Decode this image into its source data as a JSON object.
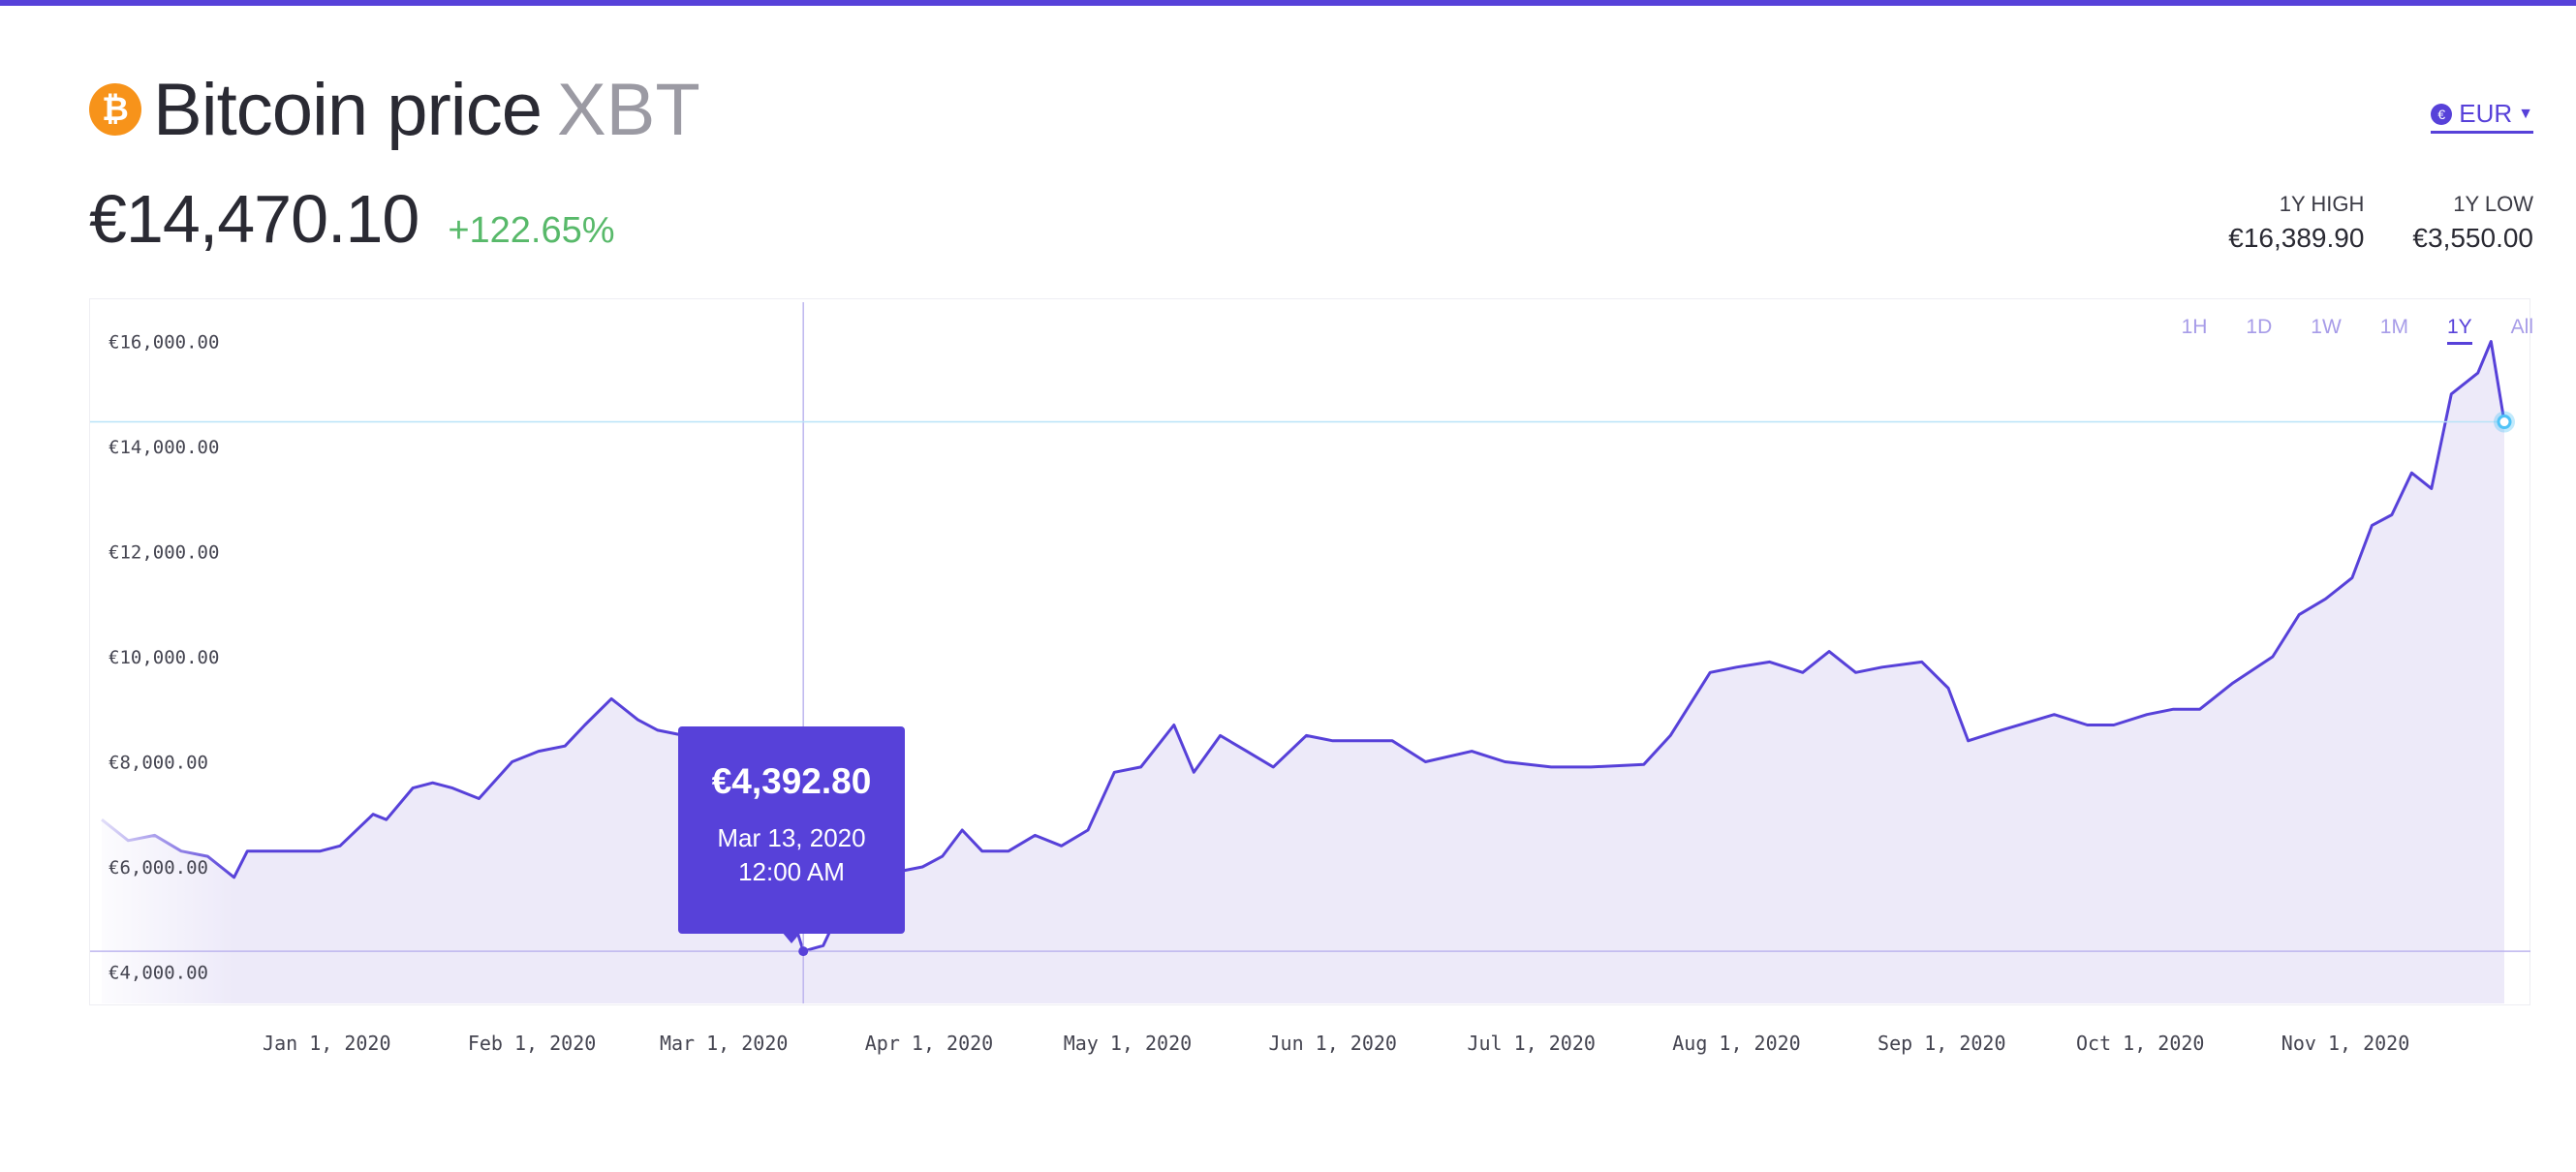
{
  "header": {
    "title": "Bitcoin price",
    "ticker": "XBT",
    "logo_icon": "bitcoin-icon",
    "logo_glyph": "₿",
    "currency_icon_glyph": "€",
    "currency": "EUR",
    "price": "€14,470.10",
    "change": "+122.65%",
    "high_label": "1Y HIGH",
    "high_value": "€16,389.90",
    "low_label": "1Y LOW",
    "low_value": "€3,550.00"
  },
  "range_tabs": [
    {
      "label": "1H",
      "active": false
    },
    {
      "label": "1D",
      "active": false
    },
    {
      "label": "1W",
      "active": false
    },
    {
      "label": "1M",
      "active": false
    },
    {
      "label": "1Y",
      "active": true
    },
    {
      "label": "All",
      "active": false
    }
  ],
  "tooltip": {
    "value": "€4,392.80",
    "date": "Mar 13, 2020",
    "time": "12:00 AM"
  },
  "colors": {
    "accent": "#5741d9",
    "area_fill": "#edeaf9",
    "positive": "#58b96a",
    "bitcoin": "#f7931a",
    "current_marker": "#4fc3f7"
  },
  "chart_data": {
    "type": "area",
    "title": "",
    "xlabel": "",
    "ylabel": "",
    "currency": "EUR",
    "ylim": [
      3400,
      16600
    ],
    "xlim": [
      "2019-11-28",
      "2020-11-25"
    ],
    "y_ticks": [
      4000,
      6000,
      8000,
      10000,
      12000,
      14000,
      16000
    ],
    "y_tick_labels": [
      "€4,000.00",
      "€6,000.00",
      "€8,000.00",
      "€10,000.00",
      "€12,000.00",
      "€14,000.00",
      "€16,000.00"
    ],
    "x_ticks": [
      "2020-01-01",
      "2020-02-01",
      "2020-03-01",
      "2020-04-01",
      "2020-05-01",
      "2020-06-01",
      "2020-07-01",
      "2020-08-01",
      "2020-09-01",
      "2020-10-01",
      "2020-11-01"
    ],
    "x_tick_labels": [
      "Jan 1, 2020",
      "Feb 1, 2020",
      "Mar 1, 2020",
      "Apr 1, 2020",
      "May 1, 2020",
      "Jun 1, 2020",
      "Jul 1, 2020",
      "Aug 1, 2020",
      "Sep 1, 2020",
      "Oct 1, 2020",
      "Nov 1, 2020"
    ],
    "grid": false,
    "hover_point": {
      "x": "2020-03-13",
      "y": 4392.8
    },
    "current_point": {
      "x": "2020-11-25",
      "y": 14470.1
    },
    "series": [
      {
        "name": "",
        "x": [
          "2019-11-28",
          "2019-12-02",
          "2019-12-06",
          "2019-12-10",
          "2019-12-14",
          "2019-12-18",
          "2019-12-20",
          "2019-12-25",
          "2019-12-31",
          "2020-01-03",
          "2020-01-08",
          "2020-01-10",
          "2020-01-14",
          "2020-01-17",
          "2020-01-20",
          "2020-01-24",
          "2020-01-29",
          "2020-02-02",
          "2020-02-06",
          "2020-02-09",
          "2020-02-13",
          "2020-02-17",
          "2020-02-20",
          "2020-02-24",
          "2020-02-27",
          "2020-03-01",
          "2020-03-05",
          "2020-03-08",
          "2020-03-10",
          "2020-03-12",
          "2020-03-13",
          "2020-03-16",
          "2020-03-19",
          "2020-03-23",
          "2020-03-27",
          "2020-03-31",
          "2020-04-03",
          "2020-04-06",
          "2020-04-09",
          "2020-04-13",
          "2020-04-17",
          "2020-04-21",
          "2020-04-25",
          "2020-04-29",
          "2020-05-03",
          "2020-05-08",
          "2020-05-11",
          "2020-05-15",
          "2020-05-19",
          "2020-05-23",
          "2020-05-28",
          "2020-06-01",
          "2020-06-05",
          "2020-06-10",
          "2020-06-15",
          "2020-06-22",
          "2020-06-27",
          "2020-07-04",
          "2020-07-10",
          "2020-07-18",
          "2020-07-22",
          "2020-07-28",
          "2020-08-01",
          "2020-08-06",
          "2020-08-11",
          "2020-08-15",
          "2020-08-19",
          "2020-08-23",
          "2020-08-29",
          "2020-09-02",
          "2020-09-05",
          "2020-09-10",
          "2020-09-18",
          "2020-09-23",
          "2020-09-27",
          "2020-10-02",
          "2020-10-06",
          "2020-10-10",
          "2020-10-15",
          "2020-10-21",
          "2020-10-25",
          "2020-10-29",
          "2020-11-02",
          "2020-11-05",
          "2020-11-08",
          "2020-11-11",
          "2020-11-14",
          "2020-11-17",
          "2020-11-19",
          "2020-11-21",
          "2020-11-23",
          "2020-11-25"
        ],
        "y": [
          6900,
          6500,
          6600,
          6300,
          6200,
          5800,
          6300,
          6300,
          6300,
          6400,
          7000,
          6900,
          7500,
          7600,
          7500,
          7300,
          8000,
          8200,
          8300,
          8700,
          9200,
          8800,
          8600,
          8500,
          8300,
          8100,
          8000,
          7700,
          6900,
          4800,
          4392.8,
          4500,
          5300,
          5700,
          5900,
          6000,
          6200,
          6700,
          6300,
          6300,
          6600,
          6400,
          6700,
          7800,
          7900,
          8700,
          7800,
          8500,
          8200,
          7900,
          8500,
          8400,
          8400,
          8400,
          8000,
          8200,
          8000,
          7900,
          7900,
          7950,
          8500,
          9700,
          9800,
          9900,
          9700,
          10100,
          9700,
          9800,
          9900,
          9400,
          8400,
          8600,
          8900,
          8700,
          8700,
          8900,
          9000,
          9000,
          9500,
          10000,
          10800,
          11100,
          11500,
          12500,
          12700,
          13500,
          13200,
          15000,
          15200,
          15400,
          16000,
          14470.1
        ]
      }
    ]
  }
}
